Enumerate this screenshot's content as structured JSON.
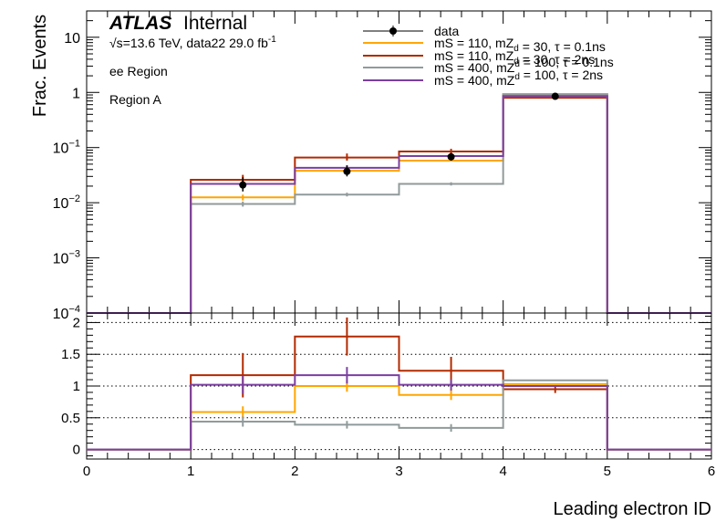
{
  "chart_data": [
    {
      "type": "line",
      "panel": "main",
      "ylabel": "Frac. Events",
      "yscale": "log",
      "ylim": [
        0.0001,
        30
      ],
      "xlim": [
        0,
        6
      ],
      "bin_edges": [
        0,
        1,
        2,
        3,
        4,
        5,
        6
      ],
      "yticks": [
        {
          "v": 10,
          "base": "10",
          "exp": ""
        },
        {
          "v": 1,
          "base": "1",
          "exp": ""
        },
        {
          "v": 0.1,
          "base": "10",
          "exp": "−1"
        },
        {
          "v": 0.01,
          "base": "10",
          "exp": "−2"
        },
        {
          "v": 0.001,
          "base": "10",
          "exp": "−3"
        },
        {
          "v": 0.0001,
          "base": "10",
          "exp": "−4"
        }
      ],
      "annotations": {
        "atlas": "ATLAS",
        "internal": "Internal",
        "energy_sqrt": "√s",
        "energy_rest": "=13.6 TeV, data22 29.0 fb",
        "energy_sup": "-1",
        "region1": "ee Region",
        "region2": "Region A"
      },
      "legend": {
        "placement": "top-right",
        "entries": [
          {
            "key": "data",
            "parts": [
              [
                "data",
                ""
              ]
            ]
          },
          {
            "key": "s1",
            "parts": [
              [
                "mS = 110, mZ",
                ""
              ],
              [
                "d",
                "sub"
              ],
              [
                " = 30, τ = 0.1ns",
                ""
              ]
            ]
          },
          {
            "key": "s2",
            "parts": [
              [
                "mS = 110, mZ",
                ""
              ],
              [
                "d",
                "sub"
              ],
              [
                " = 30, τ = 2ns",
                ""
              ]
            ]
          },
          {
            "key": "s3",
            "parts": [
              [
                "mS = 400, mZ",
                ""
              ],
              [
                "d",
                "sup"
              ],
              [
                " = 100, τ = 0.1ns",
                ""
              ]
            ]
          },
          {
            "key": "s4",
            "parts": [
              [
                "mS = 400, mZ",
                ""
              ],
              [
                "d",
                "sup"
              ],
              [
                " = 100, τ = 2ns",
                ""
              ]
            ]
          }
        ]
      },
      "data_points": {
        "x": [
          1.5,
          2.5,
          3.5,
          4.5
        ],
        "y": [
          0.021,
          0.037,
          0.068,
          0.85
        ],
        "err_low": [
          0.016,
          0.03,
          0.058,
          0.8
        ],
        "err_high": [
          0.029,
          0.047,
          0.08,
          0.9
        ]
      },
      "series": [
        {
          "key": "s1",
          "color": "#ffa500",
          "values": [
            0,
            0.0125,
            0.038,
            0.058,
            0.92,
            0
          ],
          "err": [
            null,
            [
              0.011,
              0.014
            ],
            null,
            null,
            null,
            null
          ]
        },
        {
          "key": "s2",
          "color": "#b22a00",
          "values": [
            0,
            0.026,
            0.066,
            0.085,
            0.8,
            0
          ],
          "err": [
            null,
            [
              0.022,
              0.032
            ],
            [
              0.058,
              0.078
            ],
            [
              0.076,
              0.095
            ],
            null,
            null
          ]
        },
        {
          "key": "s3",
          "color": "#919a9a",
          "values": [
            0,
            0.0095,
            0.014,
            0.022,
            0.93,
            0
          ],
          "err": [
            null,
            [
              0.0085,
              0.0105
            ],
            [
              0.013,
              0.0152
            ],
            [
              0.0205,
              0.0235
            ],
            null,
            null
          ]
        },
        {
          "key": "s4",
          "color": "#7b3fa0",
          "values": [
            0,
            0.022,
            0.043,
            0.07,
            0.86,
            0
          ],
          "err": [
            null,
            [
              0.02,
              0.025
            ],
            [
              0.039,
              0.048
            ],
            [
              0.066,
              0.075
            ],
            null,
            null
          ]
        }
      ]
    },
    {
      "type": "line",
      "panel": "ratio",
      "xlabel": "Leading electron ID",
      "ylim": [
        -0.15,
        2.15
      ],
      "xlim": [
        0,
        6
      ],
      "yticks": [
        0,
        0.5,
        1,
        1.5,
        2
      ],
      "ytick_labels": [
        "0",
        "0.5",
        "1",
        "1.5",
        "2"
      ],
      "xticks": [
        0,
        1,
        2,
        3,
        4,
        5,
        6
      ],
      "xtick_labels": [
        "0",
        "1",
        "2",
        "3",
        "4",
        "5",
        "6"
      ],
      "grid": "horizontal dotted",
      "series": [
        {
          "key": "s1",
          "color": "#ffa500",
          "values": [
            0,
            0.59,
            1.0,
            0.86,
            1.03,
            0
          ],
          "err": [
            null,
            [
              0.5,
              0.68
            ],
            [
              0.91,
              1.09
            ],
            [
              0.78,
              0.94
            ],
            null,
            null
          ]
        },
        {
          "key": "s2",
          "color": "#b22a00",
          "values": [
            0,
            1.17,
            1.78,
            1.24,
            0.95,
            0
          ],
          "err": [
            null,
            [
              0.82,
              1.52
            ],
            [
              1.48,
              2.08
            ],
            [
              1.02,
              1.46
            ],
            [
              0.89,
              1.01
            ],
            null
          ]
        },
        {
          "key": "s3",
          "color": "#919a9a",
          "values": [
            0,
            0.44,
            0.39,
            0.34,
            1.09,
            0
          ],
          "err": [
            null,
            [
              0.36,
              0.52
            ],
            [
              0.33,
              0.45
            ],
            [
              0.28,
              0.4
            ],
            null,
            null
          ]
        },
        {
          "key": "s4",
          "color": "#7b3fa0",
          "values": [
            0,
            1.02,
            1.17,
            1.02,
            1.0,
            0
          ],
          "err": [
            null,
            [
              0.88,
              1.16
            ],
            [
              1.04,
              1.3
            ],
            [
              0.93,
              1.11
            ],
            null,
            null
          ]
        }
      ]
    }
  ]
}
